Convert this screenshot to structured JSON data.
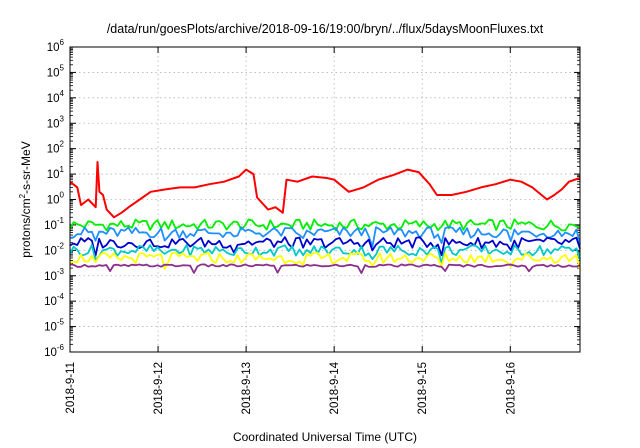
{
  "chart_data": {
    "type": "line",
    "title": "/data/run/goesPlots/archive/2018-09-16/19:00/bryn/../flux/5daysMoonFluxes.txt",
    "xlabel": "Coordinated Universal Time (UTC)",
    "ylabel": {
      "pre": "protons/cm",
      "sup": "2",
      "post": "-s-sr-MeV"
    },
    "y_scale": "log",
    "ylim": [
      1e-06,
      1000000.0
    ],
    "y_ticks": [
      {
        "exp": "-6",
        "value": 1e-06
      },
      {
        "exp": "-5",
        "value": 1e-05
      },
      {
        "exp": "-4",
        "value": 0.0001
      },
      {
        "exp": "-3",
        "value": 0.001
      },
      {
        "exp": "-2",
        "value": 0.01
      },
      {
        "exp": "-1",
        "value": 0.1
      },
      {
        "exp": "0",
        "value": 1
      },
      {
        "exp": "1",
        "value": 10
      },
      {
        "exp": "2",
        "value": 100
      },
      {
        "exp": "3",
        "value": 1000
      },
      {
        "exp": "4",
        "value": 10000
      },
      {
        "exp": "5",
        "value": 100000
      },
      {
        "exp": "6",
        "value": 1000000
      }
    ],
    "y_tick_base": "10",
    "x_ticks": [
      "2018-9-11",
      "2018-9-12",
      "2018-9-13",
      "2018-9-14",
      "2018-9-15",
      "2018-9-16"
    ],
    "xlim": [
      "2018-09-11 00:00",
      "2018-09-16 19:00"
    ],
    "grid": true,
    "series": [
      {
        "color": "#ff0000",
        "x": [
          "2018-09-11 00:00",
          "2018-09-11 02:00",
          "2018-09-11 03:00",
          "2018-09-11 05:00",
          "2018-09-11 07:00",
          "2018-09-11 07:30",
          "2018-09-11 08:00",
          "2018-09-11 09:00",
          "2018-09-11 10:00",
          "2018-09-11 12:00",
          "2018-09-11 14:00",
          "2018-09-11 16:00",
          "2018-09-11 19:00",
          "2018-09-11 22:00",
          "2018-09-12 02:00",
          "2018-09-12 06:00",
          "2018-09-12 10:00",
          "2018-09-12 14:00",
          "2018-09-12 18:00",
          "2018-09-12 22:00",
          "2018-09-13 00:00",
          "2018-09-13 02:00",
          "2018-09-13 03:00",
          "2018-09-13 06:00",
          "2018-09-13 08:00",
          "2018-09-13 10:00",
          "2018-09-13 11:00",
          "2018-09-13 14:00",
          "2018-09-13 18:00",
          "2018-09-13 22:00",
          "2018-09-14 00:00",
          "2018-09-14 04:00",
          "2018-09-14 08:00",
          "2018-09-14 12:00",
          "2018-09-14 16:00",
          "2018-09-14 20:00",
          "2018-09-14 23:00",
          "2018-09-15 02:00",
          "2018-09-15 04:00",
          "2018-09-15 08:00",
          "2018-09-15 12:00",
          "2018-09-15 16:00",
          "2018-09-15 20:00",
          "2018-09-16 00:00",
          "2018-09-16 03:00",
          "2018-09-16 06:00",
          "2018-09-16 10:00",
          "2018-09-16 12:00",
          "2018-09-16 14:00",
          "2018-09-16 16:00",
          "2018-09-16 19:00"
        ],
        "y": [
          5,
          3,
          0.6,
          1,
          0.5,
          30,
          2,
          1.5,
          0.4,
          0.2,
          0.3,
          0.5,
          1,
          2,
          2.5,
          3,
          3,
          4,
          5,
          8,
          15,
          10,
          1.2,
          0.4,
          0.5,
          0.3,
          6,
          5,
          8,
          7,
          6,
          2,
          3,
          6,
          9,
          15,
          12,
          4,
          1.5,
          1.5,
          2,
          3,
          4,
          6,
          5,
          3,
          1,
          1.5,
          2.5,
          5,
          7
        ]
      },
      {
        "color": "#00ee00",
        "x": [
          "2018-09-11 00:00",
          "2018-09-16 19:00"
        ],
        "y": [
          0.1,
          0.1
        ]
      },
      {
        "color": "#1e90ff",
        "x": [
          "2018-09-11 00:00",
          "2018-09-16 19:00"
        ],
        "y": [
          0.05,
          0.05
        ]
      },
      {
        "color": "#0000cd",
        "x": [
          "2018-09-11 00:00",
          "2018-09-16 19:00"
        ],
        "y": [
          0.02,
          0.02
        ]
      },
      {
        "color": "#00c8c8",
        "x": [
          "2018-09-11 00:00",
          "2018-09-16 19:00"
        ],
        "y": [
          0.01,
          0.01
        ]
      },
      {
        "color": "#ffff00",
        "x": [
          "2018-09-11 00:00",
          "2018-09-16 19:00"
        ],
        "y": [
          0.005,
          0.005
        ]
      },
      {
        "color": "#8b2f8b",
        "x": [
          "2018-09-11 00:00",
          "2018-09-16 19:00"
        ],
        "y": [
          0.0025,
          0.0025
        ]
      }
    ]
  }
}
